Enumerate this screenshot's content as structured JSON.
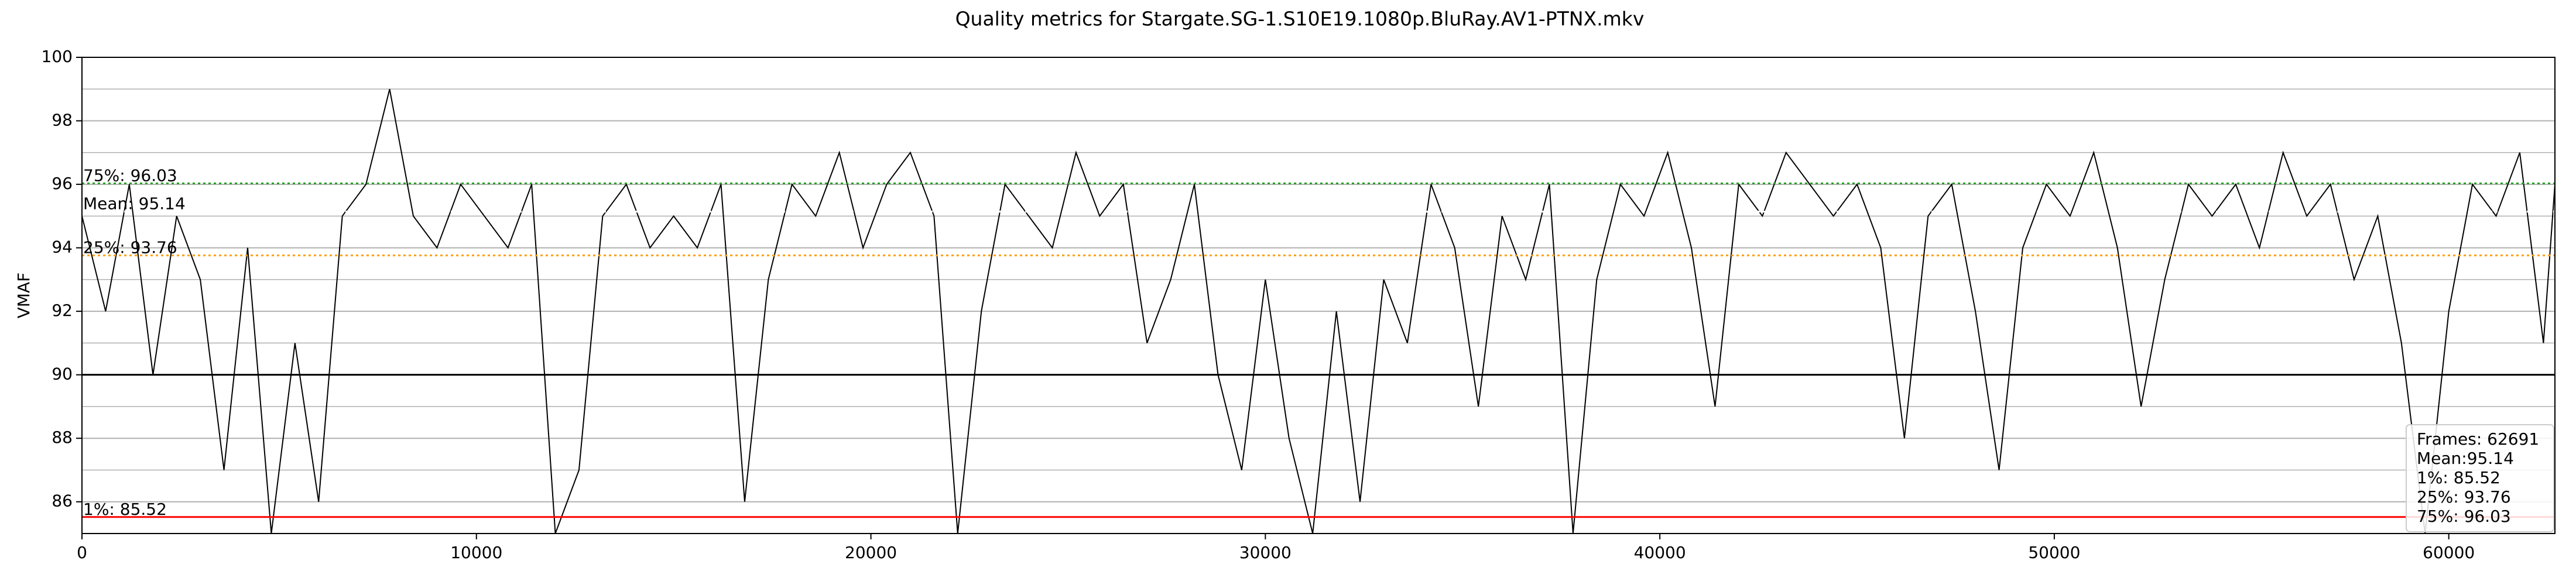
{
  "chart_data": {
    "type": "line",
    "title": "Quality metrics for Stargate.SG-1.S10E19.1080p.BluRay.AV1-PTNX.mkv",
    "ylabel": "VMAF",
    "xlim": [
      0,
      62691
    ],
    "ylim": [
      85,
      100
    ],
    "xticks": [
      0,
      10000,
      20000,
      30000,
      40000,
      50000,
      60000
    ],
    "yticks": [
      86,
      88,
      90,
      92,
      94,
      96,
      98,
      100
    ],
    "minor_yticks": [
      85,
      87,
      89,
      91,
      93,
      95,
      97,
      99
    ],
    "grid": true,
    "series": [
      {
        "color": "#000000",
        "x": [
          0,
          600,
          1200,
          1800,
          2400,
          3000,
          3600,
          4200,
          4800,
          5400,
          6000,
          6600,
          7200,
          7800,
          8400,
          9000,
          9600,
          10200,
          10800,
          11400,
          12000,
          12600,
          13200,
          13800,
          14400,
          15000,
          15600,
          16200,
          16800,
          17400,
          18000,
          18600,
          19200,
          19800,
          20400,
          21000,
          21600,
          22200,
          22800,
          23400,
          24000,
          24600,
          25200,
          25800,
          26400,
          27000,
          27600,
          28200,
          28800,
          29400,
          30000,
          30600,
          31200,
          31800,
          32400,
          33000,
          33600,
          34200,
          34800,
          35400,
          36000,
          36600,
          37200,
          37800,
          38400,
          39000,
          39600,
          40200,
          40800,
          41400,
          42000,
          42600,
          43200,
          43800,
          44400,
          45000,
          45600,
          46200,
          46800,
          47400,
          48000,
          48600,
          49200,
          49800,
          50400,
          51000,
          51600,
          52200,
          52800,
          53400,
          54000,
          54600,
          55200,
          55800,
          56400,
          57000,
          57600,
          58200,
          58800,
          59400,
          60000,
          60600,
          61200,
          61800,
          62400,
          62691
        ],
        "values": [
          95,
          92,
          96,
          90,
          95,
          93,
          87,
          94,
          85,
          91,
          86,
          95,
          96,
          99,
          95,
          94,
          96,
          95,
          94,
          96,
          85,
          87,
          95,
          96,
          94,
          95,
          94,
          96,
          86,
          93,
          96,
          95,
          97,
          94,
          96,
          97,
          95,
          85,
          92,
          96,
          95,
          94,
          97,
          95,
          96,
          91,
          93,
          96,
          90,
          87,
          93,
          88,
          85,
          92,
          86,
          93,
          91,
          96,
          94,
          89,
          95,
          93,
          96,
          85,
          93,
          96,
          95,
          97,
          94,
          89,
          96,
          95,
          97,
          96,
          95,
          96,
          94,
          88,
          95,
          96,
          92,
          87,
          94,
          96,
          95,
          97,
          94,
          89,
          93,
          96,
          95,
          96,
          94,
          97,
          95,
          96,
          93,
          95,
          91,
          85,
          92,
          96,
          95,
          97,
          91,
          96
        ]
      }
    ],
    "reference_lines": [
      {
        "value": 96.03,
        "label": "75%: 96.03",
        "color": "#2ca02c",
        "style": "dotted"
      },
      {
        "value": 95.14,
        "label": "Mean: 95.14",
        "color": "#ffffff",
        "style": "dotted"
      },
      {
        "value": 93.76,
        "label": "25%: 93.76",
        "color": "#ff9f0e",
        "style": "dotted"
      },
      {
        "value": 90,
        "color": "#000000",
        "style": "solid"
      },
      {
        "value": 85.52,
        "label": "1%: 85.52",
        "color": "#ff0000",
        "style": "solid"
      }
    ],
    "stats_box": [
      "Frames: 62691",
      "Mean:95.14",
      "1%: 85.52",
      "25%: 93.76",
      "75%: 96.03"
    ]
  }
}
